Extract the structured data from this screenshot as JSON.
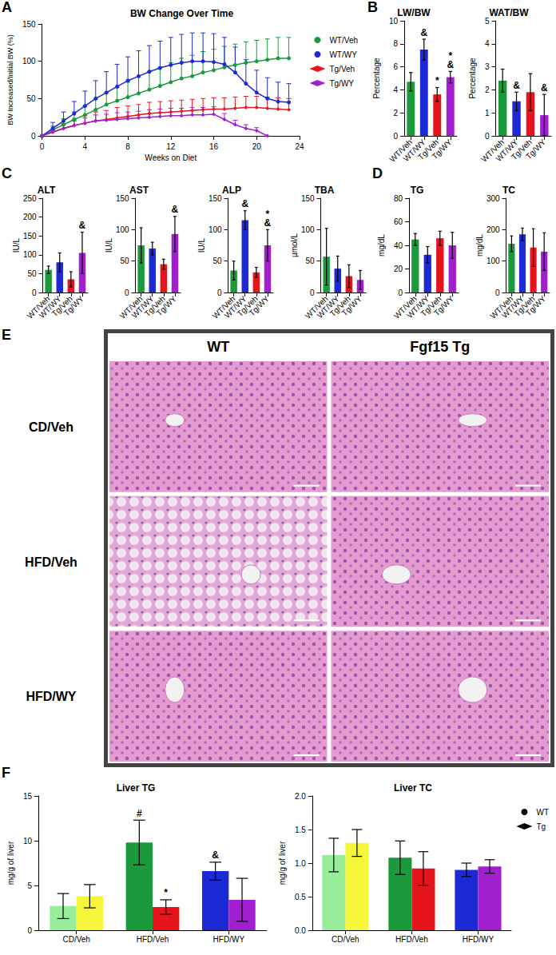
{
  "chart_data": [
    {
      "panel": "A",
      "type": "line",
      "title": "BW Change Over Time",
      "xlabel": "Weeks on Diet",
      "ylabel": "BW Increased/Initial BW (%)",
      "x": [
        0,
        1,
        2,
        3,
        4,
        5,
        6,
        7,
        8,
        9,
        10,
        11,
        12,
        13,
        14,
        15,
        16,
        17,
        18,
        19,
        20,
        21,
        22,
        23
      ],
      "xlim": [
        0,
        24
      ],
      "xticks": [
        0,
        4,
        8,
        12,
        16,
        20,
        24
      ],
      "ylim": [
        0,
        150
      ],
      "yticks": [
        0,
        50,
        100,
        150
      ],
      "grid": false,
      "legend": "right",
      "series": [
        {
          "name": "WT/Veh",
          "color": "#1a9a3a",
          "marker": "circle",
          "values": [
            0,
            8,
            15,
            22,
            28,
            35,
            42,
            47,
            52,
            57,
            62,
            67,
            72,
            77,
            80,
            85,
            88,
            92,
            95,
            98,
            100,
            102,
            104,
            104
          ],
          "errors": [
            0,
            5,
            8,
            10,
            12,
            14,
            16,
            18,
            20,
            22,
            24,
            25,
            26,
            27,
            28,
            28,
            28,
            28,
            28,
            28,
            28,
            28,
            28,
            28
          ]
        },
        {
          "name": "WT/WY",
          "color": "#1c2ad6",
          "marker": "circle",
          "values": [
            0,
            10,
            20,
            30,
            40,
            50,
            58,
            66,
            74,
            80,
            86,
            91,
            95,
            98,
            100,
            100,
            99,
            96,
            85,
            70,
            58,
            50,
            46,
            45
          ],
          "errors": [
            0,
            8,
            12,
            16,
            20,
            24,
            28,
            30,
            32,
            34,
            35,
            36,
            37,
            38,
            38,
            38,
            38,
            36,
            34,
            32,
            30,
            28,
            26,
            25
          ]
        },
        {
          "name": "Tg/Veh",
          "color": "#e6141b",
          "marker": "diamond",
          "values": [
            0,
            5,
            10,
            14,
            17,
            20,
            22,
            24,
            26,
            28,
            30,
            31,
            32,
            33,
            34,
            35,
            36,
            36,
            37,
            38,
            38,
            37,
            36,
            35
          ],
          "errors": [
            0,
            4,
            6,
            8,
            10,
            12,
            12,
            14,
            14,
            14,
            15,
            15,
            15,
            15,
            15,
            15,
            15,
            15,
            15,
            15,
            15,
            15,
            15,
            15
          ]
        },
        {
          "name": "Tg/WY",
          "color": "#a21fd0",
          "marker": "diamond",
          "values": [
            0,
            5,
            10,
            14,
            17,
            20,
            21,
            22,
            23,
            24,
            25,
            26,
            27,
            27,
            28,
            28,
            29,
            22,
            15,
            10,
            7,
            0,
            null,
            null
          ],
          "errors": [
            0,
            3,
            5,
            6,
            7,
            8,
            8,
            9,
            9,
            9,
            10,
            10,
            10,
            10,
            10,
            10,
            10,
            8,
            6,
            5,
            4,
            0,
            null,
            null
          ]
        }
      ]
    },
    {
      "panel": "B",
      "type": "bar",
      "title": "LW/BW",
      "ylabel": "Percentage",
      "categories": [
        "WT/Veh",
        "WT/WY",
        "Tg/Veh",
        "Tg/WY"
      ],
      "ylim": [
        0,
        10
      ],
      "yticks": [
        0,
        2,
        4,
        6,
        8,
        10
      ],
      "grid": false,
      "series": [
        {
          "colors": [
            "#1a9a3a",
            "#1c2ad6",
            "#e6141b",
            "#a21fd0"
          ],
          "values": [
            4.7,
            7.5,
            3.6,
            5.1
          ],
          "errors": [
            0.8,
            0.9,
            0.6,
            0.5
          ],
          "significance": [
            null,
            [
              "&"
            ],
            [
              "*"
            ],
            [
              "*",
              "&"
            ]
          ]
        }
      ]
    },
    {
      "type": "bar",
      "title": "WAT/BW",
      "ylabel": "Percentage",
      "categories": [
        "WT/Veh",
        "WT/WY",
        "Tg/Veh",
        "Tg/WY"
      ],
      "ylim": [
        0,
        5
      ],
      "yticks": [
        0,
        1,
        2,
        3,
        4,
        5
      ],
      "grid": false,
      "series": [
        {
          "colors": [
            "#1a9a3a",
            "#1c2ad6",
            "#e6141b",
            "#a21fd0"
          ],
          "values": [
            2.4,
            1.5,
            1.9,
            0.9
          ],
          "errors": [
            0.5,
            0.4,
            0.8,
            0.9
          ],
          "significance": [
            null,
            [
              "&"
            ],
            null,
            [
              "&"
            ]
          ]
        }
      ]
    },
    {
      "panel": "C",
      "type": "bar",
      "title": "ALT",
      "ylabel": "IU/L",
      "categories": [
        "WT/Veh",
        "WT/WY",
        "Tg/Veh",
        "Tg/WY"
      ],
      "ylim": [
        0,
        250
      ],
      "yticks": [
        0,
        50,
        100,
        150,
        200,
        250
      ],
      "grid": false,
      "series": [
        {
          "colors": [
            "#1a9a3a",
            "#1c2ad6",
            "#e6141b",
            "#a21fd0"
          ],
          "values": [
            60,
            80,
            35,
            105
          ],
          "errors": [
            10,
            25,
            20,
            55
          ],
          "significance": [
            null,
            null,
            null,
            [
              "&"
            ]
          ]
        }
      ]
    },
    {
      "type": "bar",
      "title": "AST",
      "ylabel": "IU/L",
      "categories": [
        "WT/Veh",
        "WT/WY",
        "Tg/Veh",
        "Tg/WY"
      ],
      "ylim": [
        0,
        150
      ],
      "yticks": [
        0,
        50,
        100,
        150
      ],
      "grid": false,
      "series": [
        {
          "colors": [
            "#1a9a3a",
            "#1c2ad6",
            "#e6141b",
            "#a21fd0"
          ],
          "values": [
            75,
            70,
            45,
            93
          ],
          "errors": [
            28,
            10,
            8,
            28
          ],
          "significance": [
            null,
            null,
            null,
            [
              "&"
            ]
          ]
        }
      ]
    },
    {
      "type": "bar",
      "title": "ALP",
      "ylabel": "IU/L",
      "categories": [
        "WT/Veh",
        "WT/WY",
        "Tg/Veh",
        "Tg/WY"
      ],
      "ylim": [
        0,
        150
      ],
      "yticks": [
        0,
        50,
        100,
        150
      ],
      "grid": false,
      "series": [
        {
          "colors": [
            "#1a9a3a",
            "#1c2ad6",
            "#e6141b",
            "#a21fd0"
          ],
          "values": [
            35,
            115,
            32,
            75
          ],
          "errors": [
            15,
            15,
            8,
            25
          ],
          "significance": [
            null,
            [
              "&"
            ],
            null,
            [
              "*",
              "&"
            ]
          ]
        }
      ]
    },
    {
      "type": "bar",
      "title": "TBA",
      "ylabel": "μmol/L",
      "categories": [
        "WT/Veh",
        "WT/WY",
        "Tg/Veh",
        "Tg/WY"
      ],
      "ylim": [
        0,
        150
      ],
      "yticks": [
        0,
        50,
        100,
        150
      ],
      "grid": false,
      "series": [
        {
          "colors": [
            "#1a9a3a",
            "#1c2ad6",
            "#e6141b",
            "#a21fd0"
          ],
          "values": [
            57,
            38,
            26,
            20
          ],
          "errors": [
            45,
            20,
            18,
            15
          ]
        }
      ]
    },
    {
      "panel": "D",
      "type": "bar",
      "title": "TG",
      "ylabel": "mg/dL",
      "categories": [
        "WT/Veh",
        "WT/WY",
        "Tg/Veh",
        "Tg/WY"
      ],
      "ylim": [
        0,
        80
      ],
      "yticks": [
        0,
        20,
        40,
        60,
        80
      ],
      "grid": false,
      "series": [
        {
          "colors": [
            "#1a9a3a",
            "#1c2ad6",
            "#e6141b",
            "#a21fd0"
          ],
          "values": [
            45,
            32,
            46,
            40
          ],
          "errors": [
            5,
            7,
            6,
            11
          ]
        }
      ]
    },
    {
      "type": "bar",
      "title": "TC",
      "ylabel": "mg/dL",
      "categories": [
        "WT/Veh",
        "WT/WY",
        "Tg/Veh",
        "Tg/WY"
      ],
      "ylim": [
        0,
        300
      ],
      "yticks": [
        0,
        100,
        200,
        300
      ],
      "grid": false,
      "series": [
        {
          "colors": [
            "#1a9a3a",
            "#1c2ad6",
            "#e6141b",
            "#a21fd0"
          ],
          "values": [
            155,
            185,
            143,
            130
          ],
          "errors": [
            25,
            20,
            60,
            60
          ]
        }
      ]
    },
    {
      "panel": "F",
      "type": "bar",
      "title": "Liver TG",
      "ylabel": "mg/g of liver",
      "categories": [
        "CD/Veh",
        "HFD/Veh",
        "HFD/WY"
      ],
      "ylim": [
        0,
        15
      ],
      "yticks": [
        0,
        5,
        10,
        15
      ],
      "grid": false,
      "series": [
        {
          "name": "WT",
          "marker": "circle",
          "colors": [
            "#98ee98",
            "#1a9a3a",
            "#1c2ad6"
          ],
          "values": [
            2.7,
            9.8,
            6.6
          ],
          "errors": [
            1.4,
            2.5,
            1.0
          ],
          "significance": [
            null,
            [
              "#"
            ],
            [
              "&"
            ]
          ]
        },
        {
          "name": "Tg",
          "marker": "diamond",
          "colors": [
            "#f5f53a",
            "#e6141b",
            "#a21fd0"
          ],
          "values": [
            3.8,
            2.6,
            3.4
          ],
          "errors": [
            1.3,
            0.8,
            2.4
          ],
          "significance": [
            null,
            [
              "*"
            ],
            null
          ]
        }
      ]
    },
    {
      "type": "bar",
      "title": "Liver TC",
      "ylabel": "mg/g of liver",
      "categories": [
        "CD/Veh",
        "HFD/Veh",
        "HFD/WY"
      ],
      "ylim": [
        0,
        2
      ],
      "yticks": [
        {
          "value": 0,
          "label": "0.0"
        },
        {
          "value": 0.5,
          "label": "0.5"
        },
        {
          "value": 1,
          "label": "1.0"
        },
        {
          "value": 1.5,
          "label": "1.5"
        },
        {
          "value": 2,
          "label": "2.0"
        }
      ],
      "grid": false,
      "legend": "right",
      "series": [
        {
          "name": "WT",
          "marker": "circle",
          "colors": [
            "#98ee98",
            "#1a9a3a",
            "#1c2ad6"
          ],
          "values": [
            1.12,
            1.08,
            0.9
          ],
          "errors": [
            0.25,
            0.25,
            0.1
          ]
        },
        {
          "name": "Tg",
          "marker": "diamond",
          "colors": [
            "#f5f53a",
            "#e6141b",
            "#a21fd0"
          ],
          "values": [
            1.3,
            0.92,
            0.95
          ],
          "errors": [
            0.2,
            0.25,
            0.1
          ]
        }
      ]
    }
  ],
  "histology": {
    "panel": "E",
    "columns": [
      "WT",
      "Fgf15 Tg"
    ],
    "rows": [
      "CD/Veh",
      "HFD/Veh",
      "HFD/WY"
    ]
  }
}
